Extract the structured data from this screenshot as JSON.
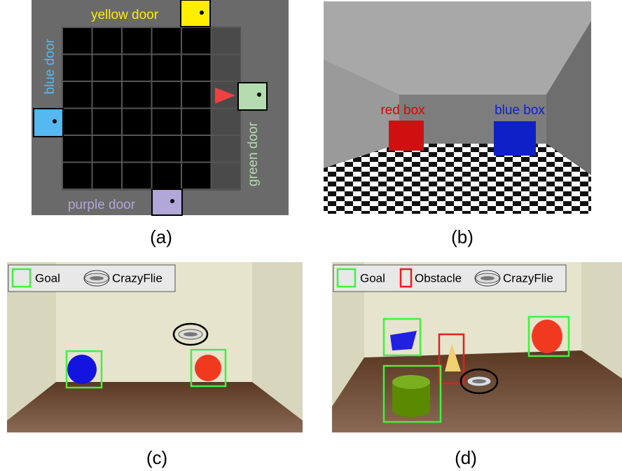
{
  "panels": [
    {
      "caption": "(a)",
      "labels": [
        "yellow door",
        "blue door",
        "green door",
        "purple door"
      ]
    },
    {
      "caption": "(b)",
      "labels": [
        "red box",
        "blue box"
      ]
    },
    {
      "caption": "(c)",
      "legend": [
        "Goal",
        "CrazyFlie"
      ]
    },
    {
      "caption": "(d)",
      "legend": [
        "Goal",
        "Obstacle",
        "CrazyFlie"
      ]
    }
  ]
}
